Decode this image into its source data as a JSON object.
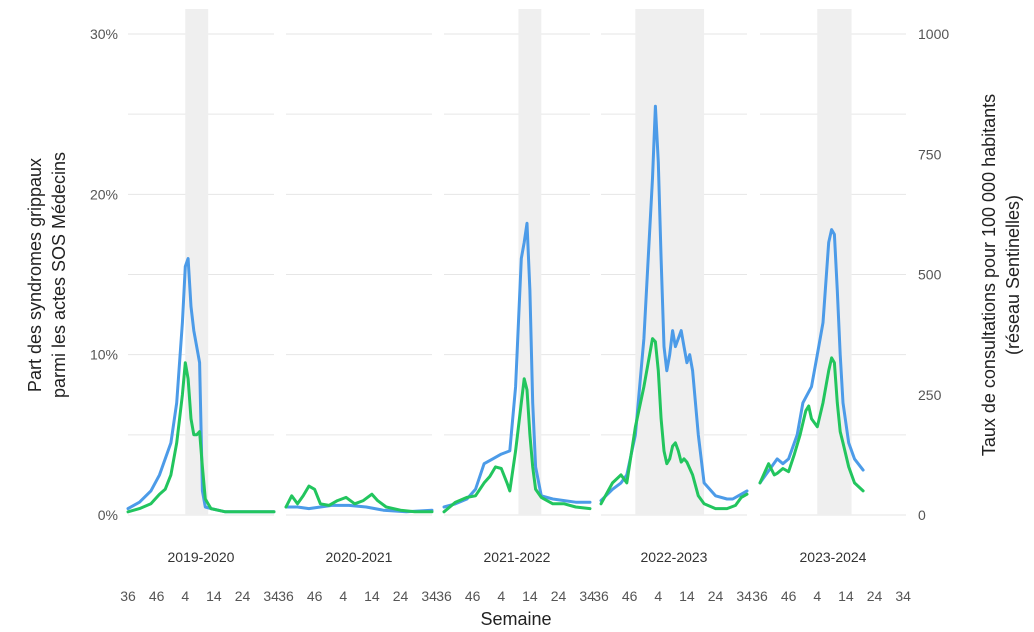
{
  "chart_data": {
    "type": "line",
    "xlabel": "Semaine",
    "ylabel_left": [
      "Part des syndromes grippaux",
      "parmi les actes SOS Médecins"
    ],
    "ylabel_right": [
      "Taux de consultations pour 100 000 habitants",
      "(réseau Sentinelles)"
    ],
    "y_left": {
      "lim": [
        0,
        30
      ],
      "ticks": [
        "0%",
        "10%",
        "20%",
        "30%"
      ],
      "values": [
        0,
        10,
        20,
        30
      ]
    },
    "y_right": {
      "lim": [
        0,
        1000
      ],
      "ticks": [
        "0",
        "250",
        "500",
        "750",
        "1000"
      ],
      "values": [
        0,
        250,
        500,
        750,
        1000
      ]
    },
    "x_ticks": [
      "36",
      "46",
      "4",
      "14",
      "24",
      "34"
    ],
    "x_tick_index": [
      0,
      10,
      20,
      30,
      40,
      50
    ],
    "grid": true,
    "colors": {
      "sos": "#4c9be8",
      "sentinelles": "#22c55e",
      "epidemic": "#efefef"
    },
    "panels": [
      {
        "season": "2019-2020",
        "epidemic": [
          20,
          28
        ],
        "sos": [
          [
            0,
            0.4
          ],
          [
            4,
            0.8
          ],
          [
            8,
            1.5
          ],
          [
            11,
            2.5
          ],
          [
            13,
            3.5
          ],
          [
            15,
            4.5
          ],
          [
            17,
            7
          ],
          [
            19,
            12
          ],
          [
            20,
            15.5
          ],
          [
            21,
            16
          ],
          [
            22,
            13
          ],
          [
            23,
            11.5
          ],
          [
            24,
            10.5
          ],
          [
            25,
            9.5
          ],
          [
            26,
            1.5
          ],
          [
            27,
            0.5
          ],
          [
            29,
            0.4
          ],
          [
            34,
            0.2
          ],
          [
            44,
            0.2
          ],
          [
            51,
            0.2
          ]
        ],
        "sentinelles": [
          [
            0,
            0.2
          ],
          [
            4,
            0.4
          ],
          [
            8,
            0.7
          ],
          [
            11,
            1.3
          ],
          [
            13,
            1.6
          ],
          [
            15,
            2.5
          ],
          [
            17,
            4.5
          ],
          [
            19,
            7.5
          ],
          [
            20,
            9.5
          ],
          [
            21,
            8.5
          ],
          [
            22,
            6
          ],
          [
            23,
            5
          ],
          [
            24,
            5
          ],
          [
            25,
            5.2
          ],
          [
            26,
            3
          ],
          [
            27,
            1
          ],
          [
            29,
            0.4
          ],
          [
            34,
            0.2
          ],
          [
            44,
            0.2
          ],
          [
            51,
            0.2
          ]
        ]
      },
      {
        "season": "2020-2021",
        "epidemic": null,
        "sos": [
          [
            0,
            0.5
          ],
          [
            4,
            0.5
          ],
          [
            8,
            0.4
          ],
          [
            12,
            0.5
          ],
          [
            16,
            0.6
          ],
          [
            22,
            0.6
          ],
          [
            28,
            0.5
          ],
          [
            34,
            0.3
          ],
          [
            42,
            0.2
          ],
          [
            51,
            0.3
          ]
        ],
        "sentinelles": [
          [
            0,
            0.5
          ],
          [
            2,
            1.2
          ],
          [
            4,
            0.7
          ],
          [
            6,
            1.2
          ],
          [
            8,
            1.8
          ],
          [
            10,
            1.6
          ],
          [
            12,
            0.7
          ],
          [
            15,
            0.6
          ],
          [
            18,
            0.9
          ],
          [
            21,
            1.1
          ],
          [
            24,
            0.7
          ],
          [
            27,
            0.9
          ],
          [
            30,
            1.3
          ],
          [
            32,
            0.9
          ],
          [
            35,
            0.5
          ],
          [
            40,
            0.3
          ],
          [
            45,
            0.2
          ],
          [
            51,
            0.2
          ]
        ]
      },
      {
        "season": "2021-2022",
        "epidemic": [
          26,
          34
        ],
        "sos": [
          [
            0,
            0.5
          ],
          [
            4,
            0.7
          ],
          [
            8,
            1
          ],
          [
            11,
            1.6
          ],
          [
            14,
            3.2
          ],
          [
            17,
            3.5
          ],
          [
            20,
            3.8
          ],
          [
            23,
            4
          ],
          [
            25,
            8
          ],
          [
            27,
            16
          ],
          [
            28,
            17
          ],
          [
            29,
            18.2
          ],
          [
            30,
            14
          ],
          [
            31,
            7
          ],
          [
            32,
            3
          ],
          [
            34,
            1.2
          ],
          [
            38,
            1
          ],
          [
            42,
            0.9
          ],
          [
            46,
            0.8
          ],
          [
            51,
            0.8
          ]
        ],
        "sentinelles": [
          [
            0,
            0.2
          ],
          [
            4,
            0.8
          ],
          [
            8,
            1.1
          ],
          [
            11,
            1.2
          ],
          [
            14,
            2
          ],
          [
            16,
            2.4
          ],
          [
            18,
            3
          ],
          [
            20,
            2.9
          ],
          [
            22,
            2
          ],
          [
            23,
            1.5
          ],
          [
            25,
            4
          ],
          [
            27,
            7
          ],
          [
            28,
            8.5
          ],
          [
            29,
            7.8
          ],
          [
            30,
            5
          ],
          [
            31,
            3
          ],
          [
            32,
            1.6
          ],
          [
            34,
            1.1
          ],
          [
            38,
            0.7
          ],
          [
            42,
            0.7
          ],
          [
            46,
            0.5
          ],
          [
            51,
            0.4
          ]
        ]
      },
      {
        "season": "2022-2023",
        "epidemic": [
          12,
          36
        ],
        "sos": [
          [
            0,
            0.9
          ],
          [
            4,
            1.6
          ],
          [
            7,
            2
          ],
          [
            9,
            2.5
          ],
          [
            12,
            5
          ],
          [
            15,
            11
          ],
          [
            18,
            21
          ],
          [
            19,
            25.5
          ],
          [
            20,
            22
          ],
          [
            21,
            16
          ],
          [
            22,
            10.5
          ],
          [
            23,
            9
          ],
          [
            24,
            10
          ],
          [
            25,
            11.5
          ],
          [
            26,
            10.5
          ],
          [
            27,
            11
          ],
          [
            28,
            11.5
          ],
          [
            29,
            10.5
          ],
          [
            30,
            9.5
          ],
          [
            31,
            10
          ],
          [
            32,
            9
          ],
          [
            34,
            5
          ],
          [
            36,
            2
          ],
          [
            40,
            1.2
          ],
          [
            44,
            1
          ],
          [
            46,
            1
          ],
          [
            48,
            1.2
          ],
          [
            51,
            1.5
          ]
        ],
        "sentinelles": [
          [
            0,
            0.7
          ],
          [
            4,
            2
          ],
          [
            7,
            2.5
          ],
          [
            9,
            2
          ],
          [
            12,
            5.5
          ],
          [
            15,
            8
          ],
          [
            18,
            11
          ],
          [
            19,
            10.8
          ],
          [
            20,
            9
          ],
          [
            21,
            6
          ],
          [
            22,
            4
          ],
          [
            23,
            3.2
          ],
          [
            24,
            3.5
          ],
          [
            25,
            4.3
          ],
          [
            26,
            4.5
          ],
          [
            27,
            4
          ],
          [
            28,
            3.3
          ],
          [
            29,
            3.5
          ],
          [
            30,
            3.3
          ],
          [
            32,
            2.5
          ],
          [
            34,
            1.2
          ],
          [
            36,
            0.7
          ],
          [
            40,
            0.4
          ],
          [
            44,
            0.4
          ],
          [
            47,
            0.6
          ],
          [
            49,
            1.1
          ],
          [
            51,
            1.3
          ]
        ]
      },
      {
        "season": "2023-2024",
        "epidemic": [
          20,
          32
        ],
        "sos": [
          [
            0,
            2
          ],
          [
            2,
            2.5
          ],
          [
            4,
            3
          ],
          [
            6,
            3.5
          ],
          [
            8,
            3.2
          ],
          [
            10,
            3.5
          ],
          [
            13,
            5
          ],
          [
            15,
            7
          ],
          [
            18,
            8
          ],
          [
            20,
            10
          ],
          [
            22,
            12
          ],
          [
            24,
            17
          ],
          [
            25,
            17.8
          ],
          [
            26,
            17.5
          ],
          [
            27,
            14
          ],
          [
            28,
            10
          ],
          [
            29,
            7
          ],
          [
            31,
            4.5
          ],
          [
            33,
            3.5
          ],
          [
            36,
            2.8
          ]
        ],
        "sentinelles": [
          [
            0,
            2
          ],
          [
            2,
            2.8
          ],
          [
            3,
            3.2
          ],
          [
            5,
            2.5
          ],
          [
            6,
            2.6
          ],
          [
            8,
            2.9
          ],
          [
            10,
            2.7
          ],
          [
            12,
            3.8
          ],
          [
            14,
            5
          ],
          [
            16,
            6.5
          ],
          [
            17,
            6.8
          ],
          [
            18,
            6
          ],
          [
            20,
            5.5
          ],
          [
            22,
            7
          ],
          [
            24,
            9
          ],
          [
            25,
            9.8
          ],
          [
            26,
            9.5
          ],
          [
            27,
            7
          ],
          [
            28,
            5.2
          ],
          [
            29,
            4.5
          ],
          [
            31,
            3
          ],
          [
            33,
            2
          ],
          [
            36,
            1.5
          ]
        ]
      }
    ]
  }
}
